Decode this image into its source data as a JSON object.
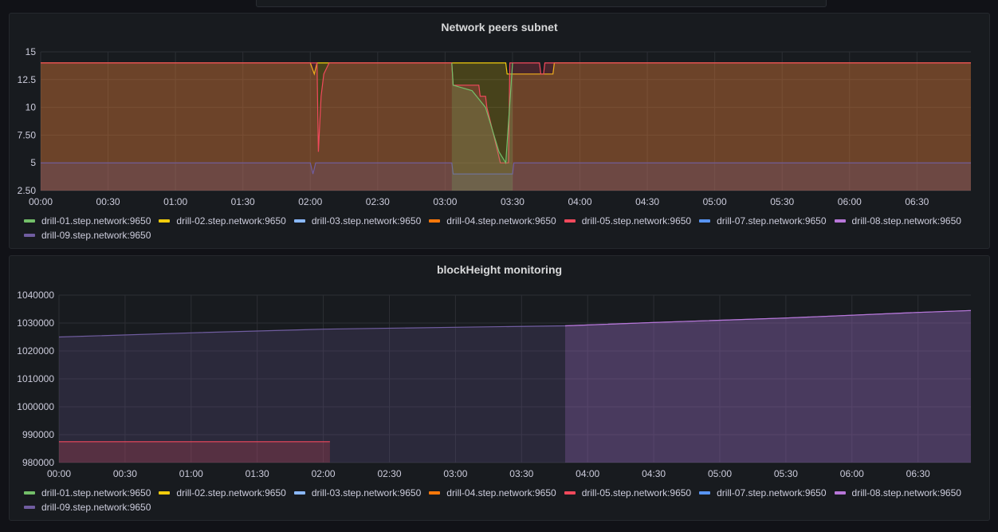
{
  "legend_series": [
    {
      "name": "drill-01.step.network:9650",
      "color": "#73bf69"
    },
    {
      "name": "drill-02.step.network:9650",
      "color": "#f2cc0c"
    },
    {
      "name": "drill-03.step.network:9650",
      "color": "#8ab8ff"
    },
    {
      "name": "drill-04.step.network:9650",
      "color": "#ff780a"
    },
    {
      "name": "drill-05.step.network:9650",
      "color": "#f2495c"
    },
    {
      "name": "drill-07.step.network:9650",
      "color": "#5794f2"
    },
    {
      "name": "drill-08.step.network:9650",
      "color": "#b877d9"
    },
    {
      "name": "drill-09.step.network:9650",
      "color": "#705da0"
    }
  ],
  "chart_data": [
    {
      "type": "line",
      "title": "Network peers subnet",
      "x_ticks": [
        "00:00",
        "00:30",
        "01:00",
        "01:30",
        "02:00",
        "02:30",
        "03:00",
        "03:30",
        "04:00",
        "04:30",
        "05:00",
        "05:30",
        "06:00",
        "06:30"
      ],
      "y_ticks": [
        "15",
        "12.5",
        "10",
        "7.50",
        "5",
        "2.50"
      ],
      "ylim": [
        2.5,
        15
      ],
      "xlim_hours": [
        0,
        6.9
      ],
      "series": [
        {
          "name": "drill-02.step.network:9650",
          "color": "#f2cc0c",
          "points": [
            [
              0,
              14
            ],
            [
              2.0,
              14
            ],
            [
              2.03,
              13
            ],
            [
              2.05,
              14
            ],
            [
              3.05,
              14
            ],
            [
              3.45,
              14
            ],
            [
              3.46,
              13
            ],
            [
              3.8,
              13
            ],
            [
              3.81,
              14
            ],
            [
              6.9,
              14
            ]
          ]
        },
        {
          "name": "drill-05.step.network:9650",
          "color": "#f2495c",
          "points": [
            [
              0,
              14
            ],
            [
              2.05,
              14
            ],
            [
              2.06,
              6
            ],
            [
              2.08,
              11
            ],
            [
              2.1,
              13
            ],
            [
              2.14,
              14
            ],
            [
              3.05,
              14
            ],
            [
              3.06,
              12
            ],
            [
              3.25,
              12
            ],
            [
              3.26,
              11
            ],
            [
              3.3,
              11
            ],
            [
              3.31,
              10
            ],
            [
              3.33,
              9
            ],
            [
              3.35,
              8
            ],
            [
              3.37,
              7
            ],
            [
              3.39,
              6
            ],
            [
              3.41,
              5
            ],
            [
              3.47,
              5
            ],
            [
              3.48,
              14
            ],
            [
              3.7,
              14
            ],
            [
              3.71,
              13
            ],
            [
              3.73,
              13
            ],
            [
              3.74,
              14
            ],
            [
              6.9,
              14
            ]
          ]
        },
        {
          "name": "drill-09.step.network:9650",
          "color": "#705da0",
          "points": [
            [
              0,
              5
            ],
            [
              2.0,
              5
            ],
            [
              2.02,
              4
            ],
            [
              2.04,
              5
            ],
            [
              3.05,
              5
            ],
            [
              3.06,
              4
            ],
            [
              3.5,
              4
            ],
            [
              3.51,
              5
            ],
            [
              6.9,
              5
            ]
          ]
        },
        {
          "name": "drill-01.step.network:9650",
          "color": "#73bf69",
          "points": [
            [
              3.05,
              14
            ],
            [
              3.06,
              12
            ],
            [
              3.2,
              11.5
            ],
            [
              3.3,
              10
            ],
            [
              3.4,
              6
            ],
            [
              3.45,
              5
            ],
            [
              3.5,
              14
            ]
          ]
        }
      ]
    },
    {
      "type": "line",
      "title": "blockHeight monitoring",
      "x_ticks": [
        "00:00",
        "00:30",
        "01:00",
        "01:30",
        "02:00",
        "02:30",
        "03:00",
        "03:30",
        "04:00",
        "04:30",
        "05:00",
        "05:30",
        "06:00",
        "06:30"
      ],
      "y_ticks": [
        "1040000",
        "1030000",
        "1020000",
        "1010000",
        "1000000",
        "990000",
        "980000"
      ],
      "ylim": [
        980000,
        1040000
      ],
      "xlim_hours": [
        0,
        6.9
      ],
      "series": [
        {
          "name": "drill-09.step.network:9650",
          "color": "#705da0",
          "points": [
            [
              0,
              1025000
            ],
            [
              1.0,
              1026500
            ],
            [
              2.0,
              1027800
            ],
            [
              3.0,
              1028500
            ],
            [
              3.83,
              1029000
            ],
            [
              4.5,
              1030200
            ],
            [
              5.5,
              1031800
            ],
            [
              6.5,
              1033800
            ],
            [
              6.9,
              1034500
            ]
          ]
        },
        {
          "name": "drill-05.step.network:9650",
          "color": "#f2495c",
          "points": [
            [
              0,
              987500
            ],
            [
              2.05,
              987500
            ]
          ]
        },
        {
          "name": "drill-08.step.network:9650",
          "color": "#b877d9",
          "points": [
            [
              3.83,
              1029000
            ],
            [
              4.5,
              1030200
            ],
            [
              5.5,
              1031800
            ],
            [
              6.5,
              1033800
            ],
            [
              6.9,
              1034500
            ]
          ]
        }
      ]
    }
  ]
}
